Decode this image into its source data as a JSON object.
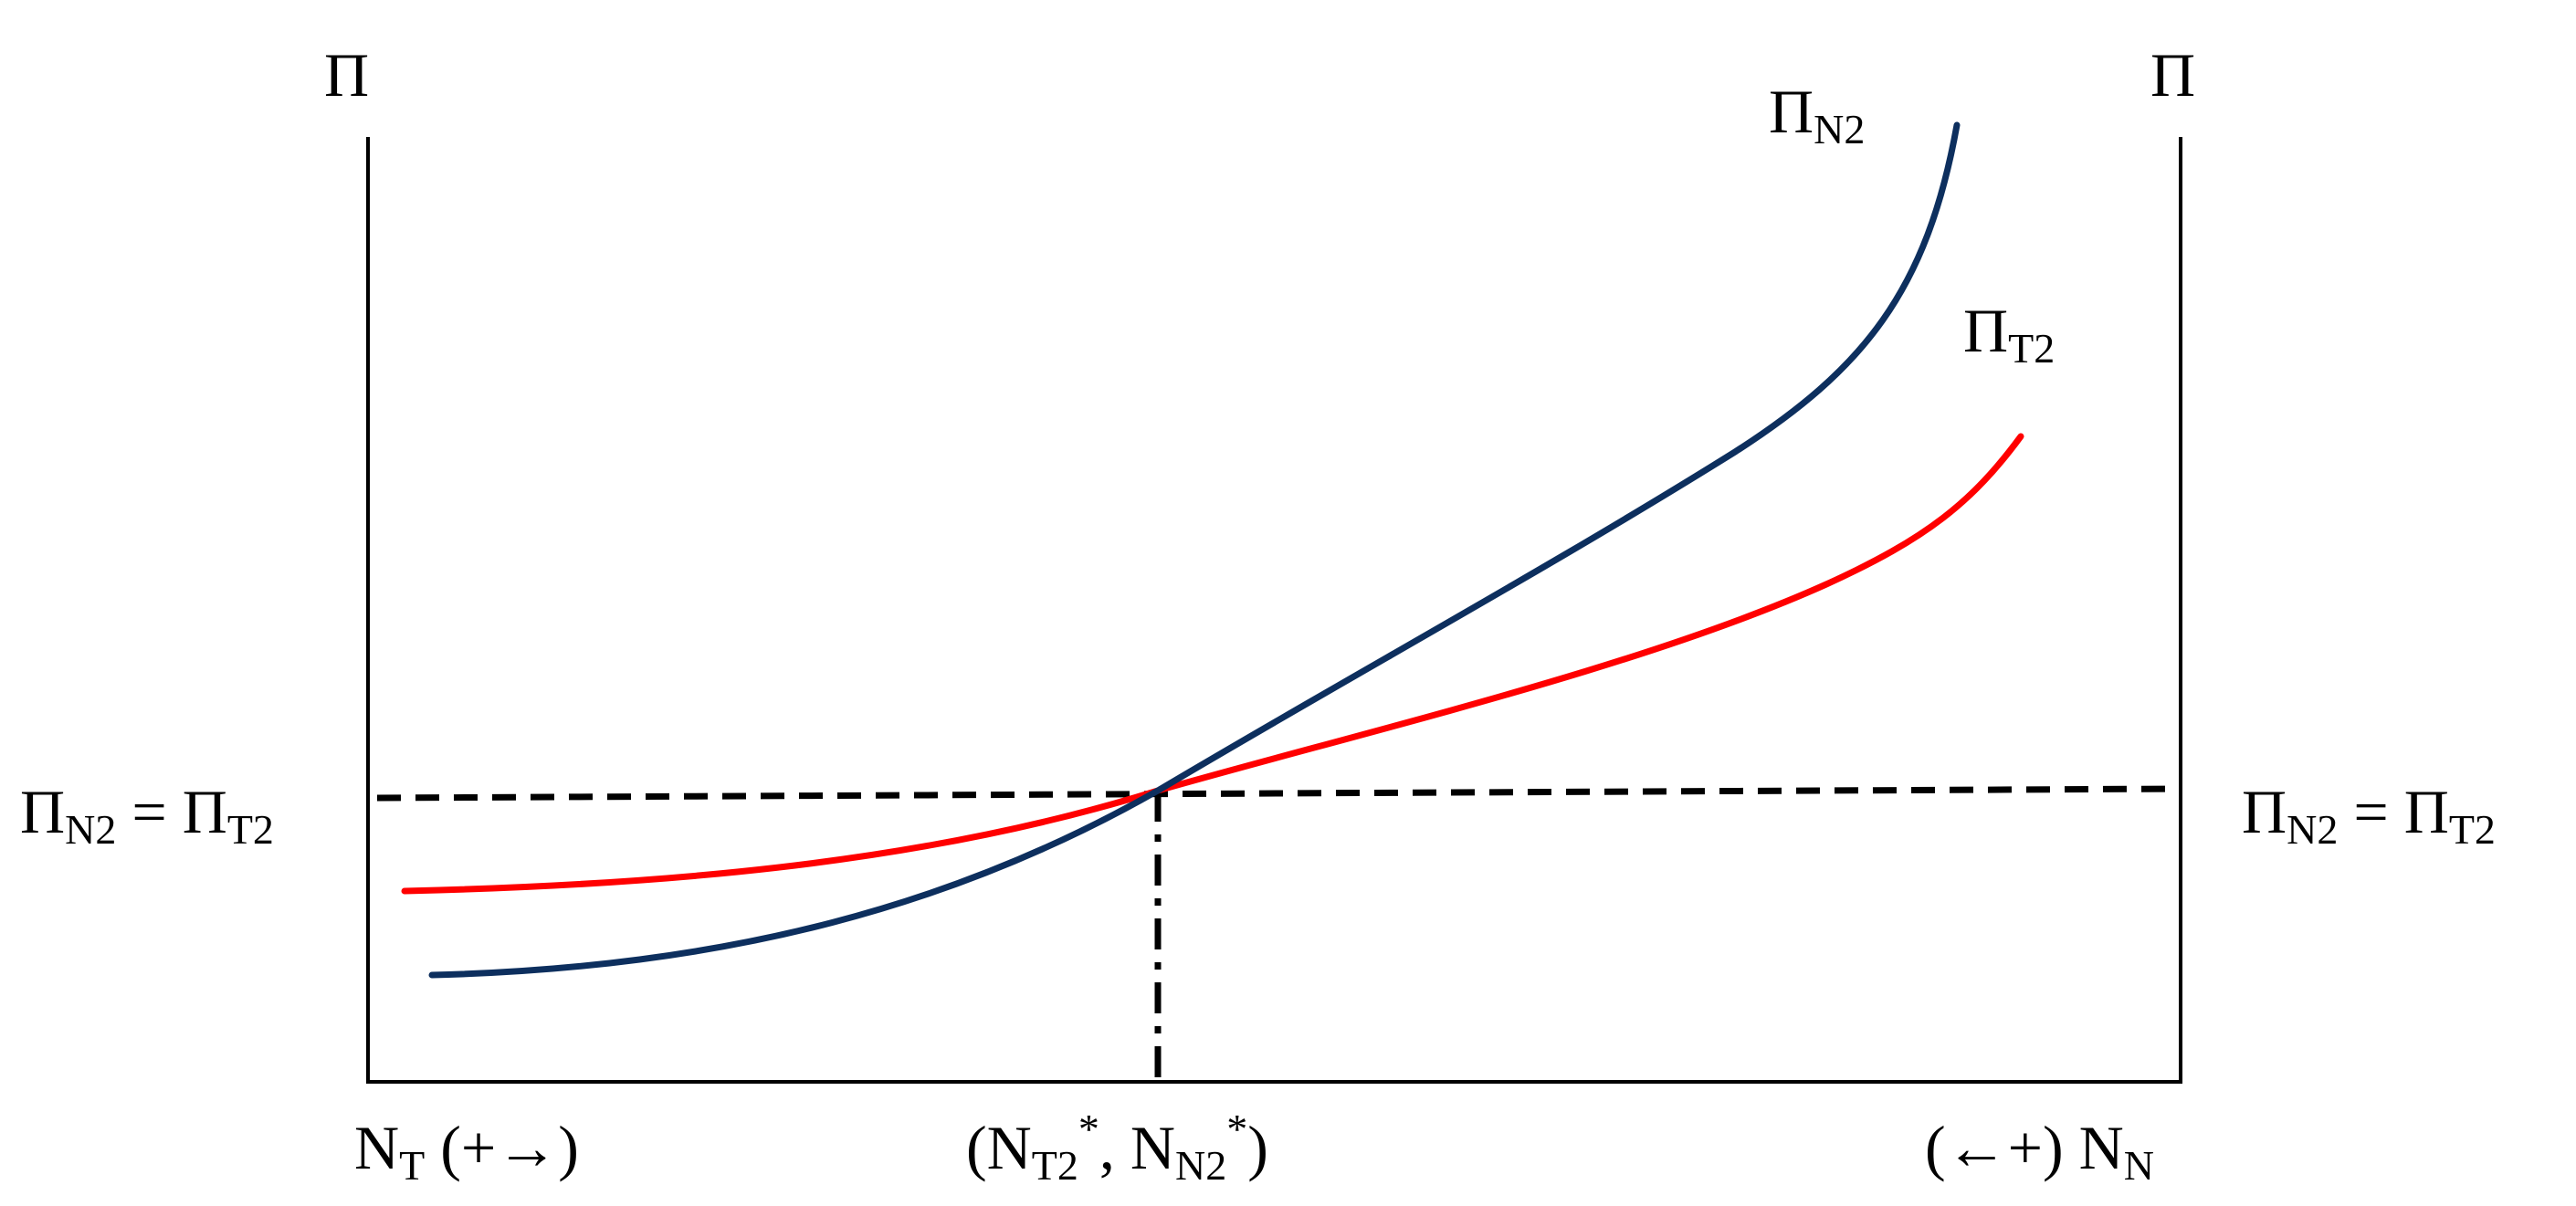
{
  "diagram": {
    "description_type": "two-sector wage equalization diagram",
    "left_axis_label": "Π",
    "right_axis_label": "Π",
    "left_origin": {
      "base": "N",
      "sub": "T",
      "suffix": " (+→)"
    },
    "right_origin": {
      "prefix": "(←+) ",
      "base": "N",
      "sub": "N"
    },
    "equilibrium_label": {
      "open": "(",
      "first_base": "N",
      "first_sub": "T2",
      "first_sup": "*",
      "sep": ", ",
      "second_base": "N",
      "second_sub": "N2",
      "second_sup": "*",
      "close": ")"
    },
    "equality_label_left": {
      "a_base": "Π",
      "a_sub": "N2",
      "eq": " = ",
      "b_base": "Π",
      "b_sub": "T2"
    },
    "equality_label_right": {
      "a_base": "Π",
      "a_sub": "N2",
      "eq": " = ",
      "b_base": "Π",
      "b_sub": "T2"
    },
    "curves": [
      {
        "id": "PiN2",
        "label_base": "Π",
        "label_sub": "N2",
        "color": "#0d2f5e"
      },
      {
        "id": "PiT2",
        "label_base": "Π",
        "label_sub": "T2",
        "color": "#ff0000"
      }
    ],
    "guide_color": "#000000",
    "axis_color": "#000000"
  }
}
